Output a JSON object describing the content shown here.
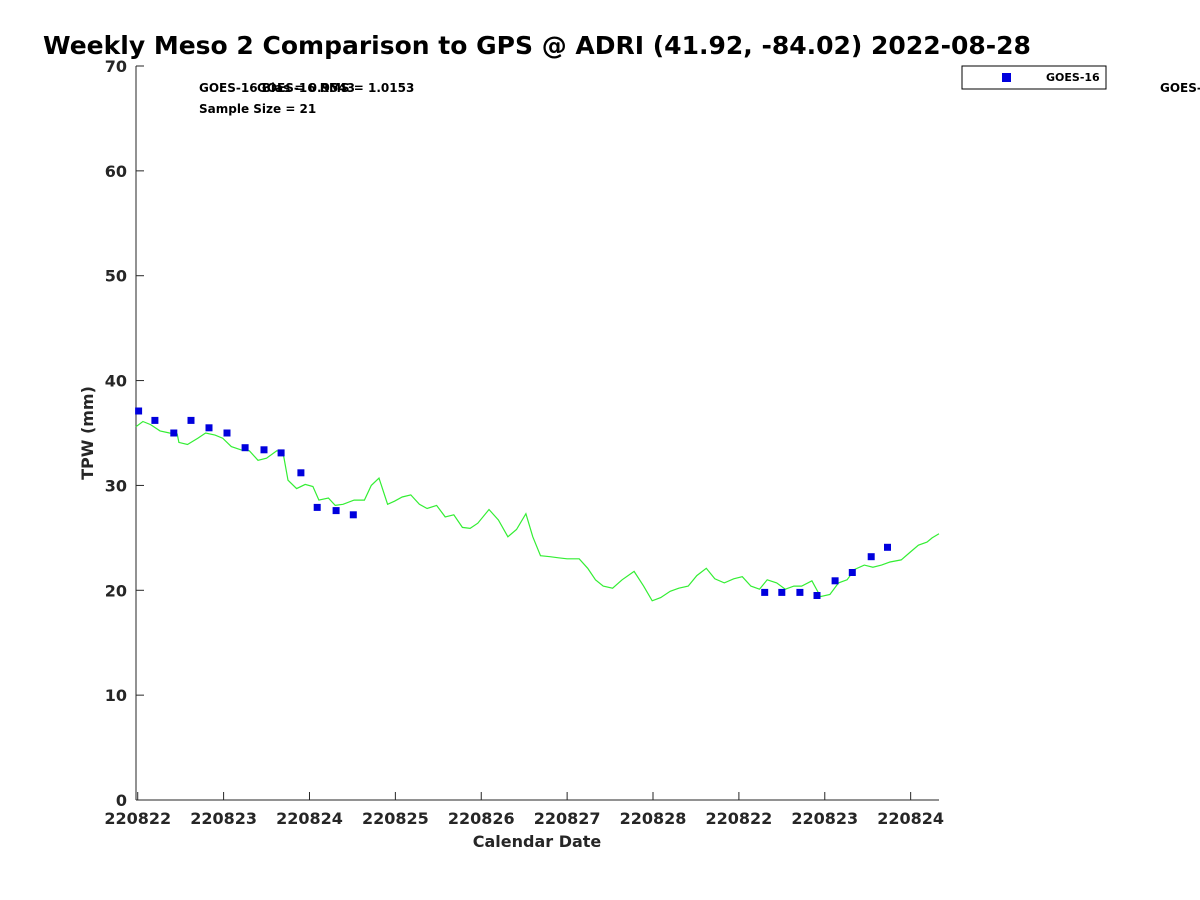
{
  "chart_data": {
    "type": "scatter",
    "title": "Weekly Meso 2 Comparison to GPS @ ADRI (41.92, -84.02) 2022-08-28",
    "xlabel": "Calendar Date",
    "ylabel": "TPW (mm)",
    "ylim": [
      0,
      70
    ],
    "xlim": [
      -0.02,
      9.33
    ],
    "y_ticks": [
      "0",
      "10",
      "20",
      "30",
      "40",
      "50",
      "60",
      "70"
    ],
    "x_ticks": [
      {
        "pos": 0,
        "label": "220822"
      },
      {
        "pos": 1,
        "label": "220823"
      },
      {
        "pos": 2,
        "label": "220824"
      },
      {
        "pos": 3,
        "label": "220825"
      },
      {
        "pos": 4,
        "label": "220826"
      },
      {
        "pos": 5,
        "label": "220827"
      },
      {
        "pos": 6,
        "label": "220828"
      },
      {
        "pos": 7,
        "label": "220822"
      },
      {
        "pos": 8,
        "label": "220823"
      },
      {
        "pos": 9,
        "label": "220824"
      }
    ],
    "stats": {
      "bias_text": "GOES-16 Bias = 0.9543",
      "rms_text": "GOES-16 RMS = 1.0153",
      "sample_text": "Sample Size = 21",
      "clipped_text": "GOES-"
    },
    "legend": {
      "position": "top-right",
      "entries": [
        "GOES-16"
      ]
    },
    "series": [
      {
        "name": "GOES-16",
        "color": "#0000dd",
        "marker": "square",
        "points": [
          [
            0.01,
            37.1
          ],
          [
            0.2,
            36.2
          ],
          [
            0.42,
            35.0
          ],
          [
            0.62,
            36.2
          ],
          [
            0.83,
            35.5
          ],
          [
            1.04,
            35.0
          ],
          [
            1.25,
            33.6
          ],
          [
            1.47,
            33.4
          ],
          [
            1.67,
            33.1
          ],
          [
            1.9,
            31.2
          ],
          [
            2.09,
            27.9
          ],
          [
            2.31,
            27.6
          ],
          [
            2.51,
            27.2
          ],
          [
            7.3,
            19.8
          ],
          [
            7.5,
            19.8
          ],
          [
            7.71,
            19.8
          ],
          [
            7.91,
            19.5
          ],
          [
            8.12,
            20.9
          ],
          [
            8.32,
            21.7
          ],
          [
            8.54,
            23.2
          ],
          [
            8.73,
            24.1
          ]
        ]
      },
      {
        "color": "#33ee33",
        "style": "line",
        "points": [
          [
            -0.02,
            35.6
          ],
          [
            0.06,
            36.1
          ],
          [
            0.15,
            35.8
          ],
          [
            0.26,
            35.2
          ],
          [
            0.37,
            35.0
          ],
          [
            0.46,
            34.9
          ],
          [
            0.48,
            34.1
          ],
          [
            0.58,
            33.9
          ],
          [
            0.7,
            34.5
          ],
          [
            0.79,
            35.0
          ],
          [
            0.9,
            34.8
          ],
          [
            0.99,
            34.5
          ],
          [
            1.09,
            33.7
          ],
          [
            1.2,
            33.4
          ],
          [
            1.3,
            33.3
          ],
          [
            1.4,
            32.4
          ],
          [
            1.5,
            32.6
          ],
          [
            1.62,
            33.3
          ],
          [
            1.69,
            33.2
          ],
          [
            1.75,
            30.5
          ],
          [
            1.85,
            29.7
          ],
          [
            1.95,
            30.1
          ],
          [
            2.04,
            29.9
          ],
          [
            2.11,
            28.6
          ],
          [
            2.22,
            28.8
          ],
          [
            2.3,
            28.1
          ],
          [
            2.39,
            28.2
          ],
          [
            2.52,
            28.6
          ],
          [
            2.64,
            28.6
          ],
          [
            2.72,
            30.0
          ],
          [
            2.81,
            30.7
          ],
          [
            2.91,
            28.2
          ],
          [
            2.99,
            28.5
          ],
          [
            3.08,
            28.9
          ],
          [
            3.18,
            29.1
          ],
          [
            3.28,
            28.2
          ],
          [
            3.37,
            27.8
          ],
          [
            3.48,
            28.1
          ],
          [
            3.58,
            27.0
          ],
          [
            3.68,
            27.2
          ],
          [
            3.78,
            26.0
          ],
          [
            3.87,
            25.9
          ],
          [
            3.96,
            26.4
          ],
          [
            4.09,
            27.7
          ],
          [
            4.2,
            26.7
          ],
          [
            4.31,
            25.1
          ],
          [
            4.41,
            25.8
          ],
          [
            4.52,
            27.3
          ],
          [
            4.6,
            25.1
          ],
          [
            4.69,
            23.3
          ],
          [
            4.8,
            23.2
          ],
          [
            4.9,
            23.1
          ],
          [
            5.0,
            23.0
          ],
          [
            5.14,
            23.0
          ],
          [
            5.24,
            22.1
          ],
          [
            5.33,
            21.0
          ],
          [
            5.42,
            20.4
          ],
          [
            5.53,
            20.2
          ],
          [
            5.64,
            21.0
          ],
          [
            5.78,
            21.8
          ],
          [
            5.89,
            20.4
          ],
          [
            5.99,
            19.0
          ],
          [
            6.09,
            19.3
          ],
          [
            6.2,
            19.9
          ],
          [
            6.3,
            20.2
          ],
          [
            6.41,
            20.4
          ],
          [
            6.51,
            21.4
          ],
          [
            6.62,
            22.1
          ],
          [
            6.72,
            21.1
          ],
          [
            6.83,
            20.7
          ],
          [
            6.94,
            21.1
          ],
          [
            7.04,
            21.3
          ],
          [
            7.14,
            20.4
          ],
          [
            7.24,
            20.1
          ],
          [
            7.33,
            21.0
          ],
          [
            7.44,
            20.7
          ],
          [
            7.54,
            20.1
          ],
          [
            7.64,
            20.4
          ],
          [
            7.73,
            20.4
          ],
          [
            7.85,
            20.9
          ],
          [
            7.95,
            19.4
          ],
          [
            8.06,
            19.6
          ],
          [
            8.16,
            20.7
          ],
          [
            8.26,
            21.0
          ],
          [
            8.35,
            22.0
          ],
          [
            8.46,
            22.4
          ],
          [
            8.56,
            22.2
          ],
          [
            8.66,
            22.4
          ],
          [
            8.76,
            22.7
          ],
          [
            8.89,
            22.9
          ],
          [
            8.99,
            23.6
          ],
          [
            9.09,
            24.3
          ],
          [
            9.19,
            24.6
          ],
          [
            9.25,
            25.0
          ],
          [
            9.33,
            25.4
          ]
        ]
      }
    ]
  }
}
